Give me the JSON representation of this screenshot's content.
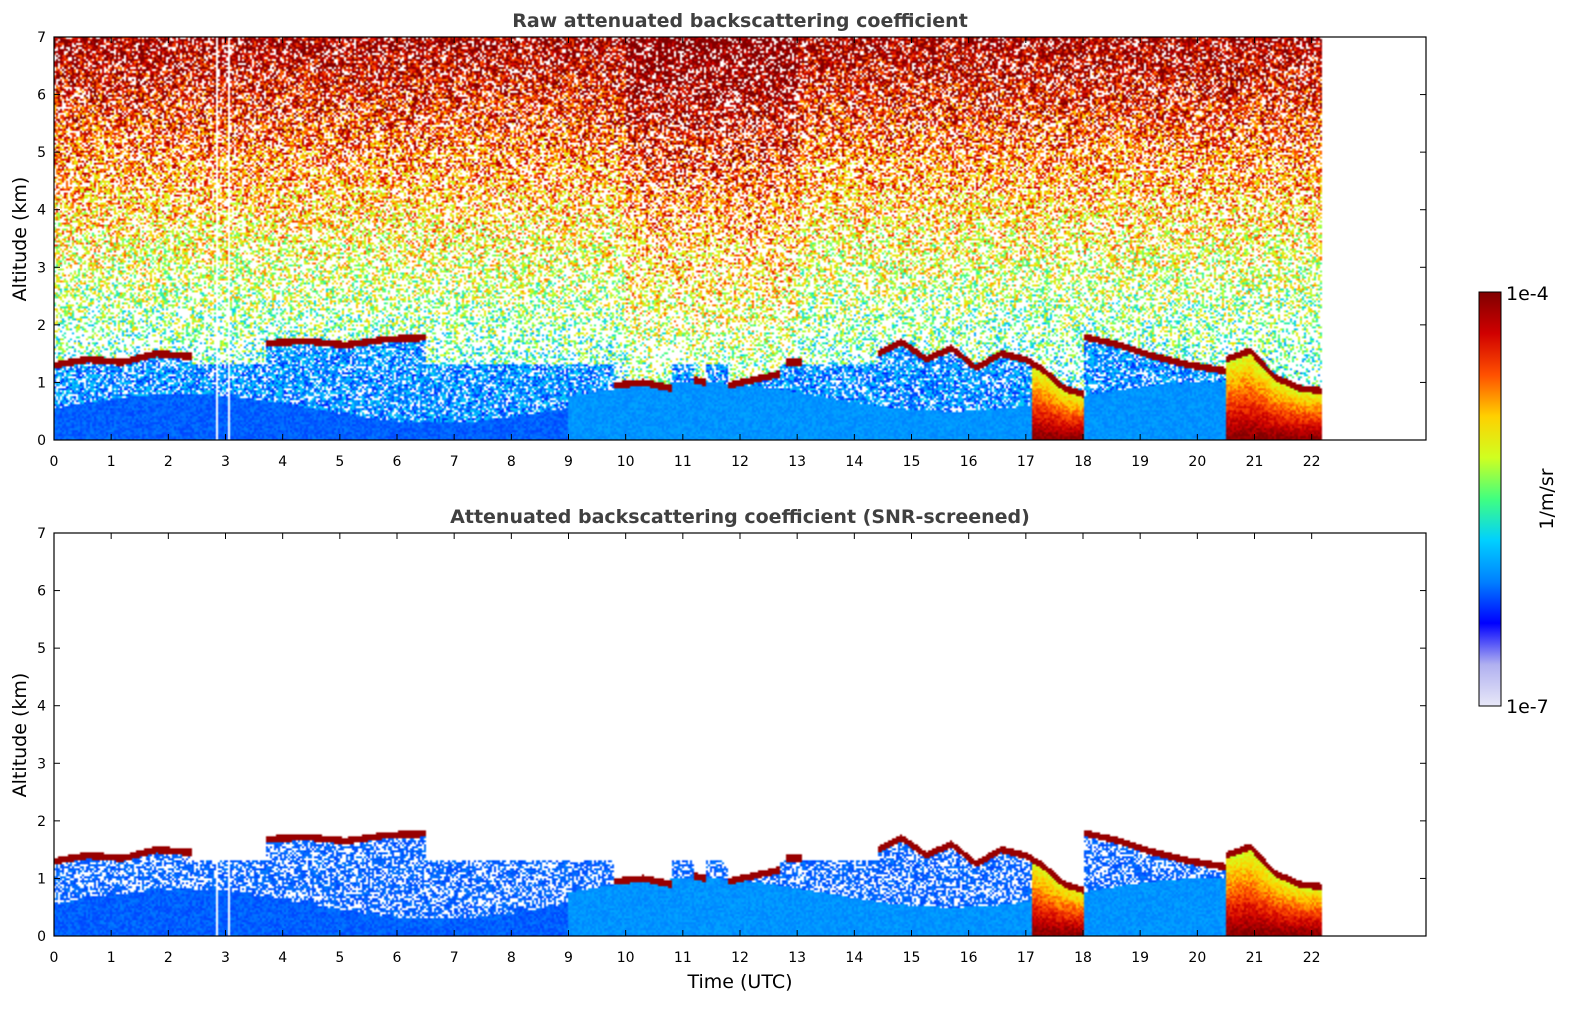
{
  "chart_data": [
    {
      "type": "heatmap",
      "title": "Raw attenuated backscattering coefficient",
      "xlabel": "",
      "ylabel": "Altitude (km)",
      "xlim": [
        0,
        24
      ],
      "ylim": [
        0,
        7
      ],
      "x_ticks": [
        "0",
        "1",
        "2",
        "3",
        "4",
        "5",
        "6",
        "7",
        "8",
        "9",
        "10",
        "11",
        "12",
        "13",
        "14",
        "15",
        "16",
        "17",
        "18",
        "19",
        "20",
        "21",
        "22"
      ],
      "y_ticks": [
        "0",
        "1",
        "2",
        "3",
        "4",
        "5",
        "6",
        "7"
      ],
      "data_end_time": 22.17,
      "noise": "high",
      "layers": [
        {
          "t0": 0.0,
          "t1": 2.4,
          "alt": [
            1.3,
            1.4,
            1.35,
            1.5,
            1.45
          ]
        },
        {
          "t0": 3.7,
          "t1": 6.5,
          "alt": [
            1.68,
            1.72,
            1.65,
            1.75,
            1.78
          ]
        },
        {
          "t0": 9.8,
          "t1": 10.8,
          "alt": [
            0.95,
            1.0,
            0.9
          ]
        },
        {
          "t0": 11.2,
          "t1": 11.4,
          "alt": [
            1.05,
            1.0
          ]
        },
        {
          "t0": 11.8,
          "t1": 12.7,
          "alt": [
            0.95,
            1.05,
            1.15
          ]
        },
        {
          "t0": 12.8,
          "t1": 13.1,
          "alt": [
            1.35,
            1.35
          ]
        },
        {
          "t0": 14.4,
          "t1": 17.0,
          "alt": [
            1.5,
            1.7,
            1.4,
            1.6,
            1.25,
            1.5,
            1.4
          ]
        },
        {
          "t0": 17.0,
          "t1": 18.0,
          "alt": [
            1.4,
            1.2,
            0.9,
            0.8
          ]
        },
        {
          "t0": 18.0,
          "t1": 20.5,
          "alt": [
            1.8,
            1.65,
            1.45,
            1.3,
            1.2
          ]
        },
        {
          "t0": 20.5,
          "t1": 22.2,
          "alt": [
            1.4,
            1.55,
            1.1,
            0.9,
            0.85
          ]
        }
      ],
      "precip": [
        [
          17.1,
          18.0
        ],
        [
          20.5,
          22.17
        ]
      ]
    },
    {
      "type": "heatmap",
      "title": "Attenuated backscattering coefficient (SNR-screened)",
      "xlabel": "Time (UTC)",
      "ylabel": "Altitude (km)",
      "xlim": [
        0,
        24
      ],
      "ylim": [
        0,
        7
      ],
      "x_ticks": [
        "0",
        "1",
        "2",
        "3",
        "4",
        "5",
        "6",
        "7",
        "8",
        "9",
        "10",
        "11",
        "12",
        "13",
        "14",
        "15",
        "16",
        "17",
        "18",
        "19",
        "20",
        "21",
        "22"
      ],
      "y_ticks": [
        "0",
        "1",
        "2",
        "3",
        "4",
        "5",
        "6",
        "7"
      ],
      "data_end_time": 22.17,
      "noise": "screened"
    }
  ],
  "colorbar": {
    "max_label": "1e-4",
    "min_label": "1e-7",
    "unit_label": "1/m/sr",
    "colormap": [
      "#e8e8f8",
      "#b0b0f0",
      "#0000ff",
      "#0080ff",
      "#00d0ff",
      "#40ff80",
      "#d0ff20",
      "#ffd000",
      "#ff5000",
      "#d00000",
      "#800000"
    ]
  }
}
